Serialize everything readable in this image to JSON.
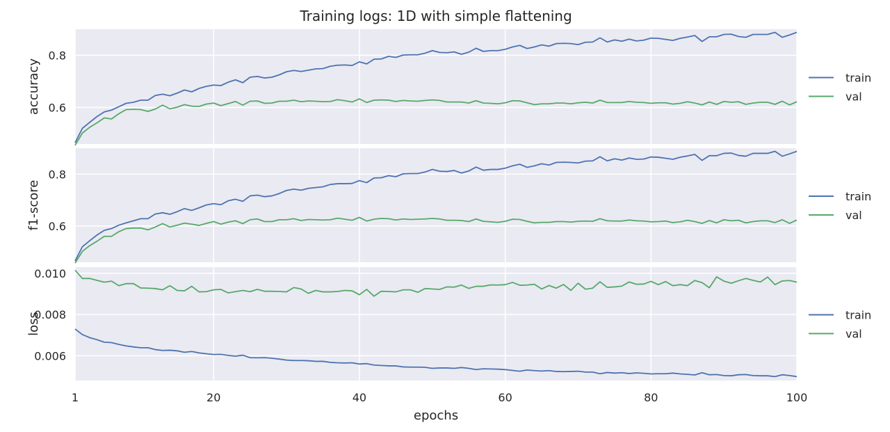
{
  "chart_data": {
    "type": "line",
    "title": "Training logs: 1D with simple flattening",
    "xlabel": "epochs",
    "x_ticks": [
      1,
      20,
      40,
      60,
      80,
      100
    ],
    "x_tick_labels": [
      "1",
      "20",
      "40",
      "60",
      "80",
      "100"
    ],
    "xlim": [
      1,
      100
    ],
    "grid": true,
    "legend_position": "right",
    "colors": {
      "train": "#4c72b0",
      "val": "#55a868",
      "panel_bg": "#eaeaf2",
      "grid": "#ffffff"
    },
    "panels": [
      {
        "ylabel": "accuracy",
        "ylim": [
          0.46,
          0.9
        ],
        "y_ticks": [
          0.6,
          0.8
        ],
        "y_tick_labels": [
          "0.6",
          "0.8"
        ],
        "legend": [
          "train",
          "val"
        ],
        "series": [
          {
            "name": "train",
            "values": [
              0.465,
              0.52,
              0.543,
              0.565,
              0.583,
              0.59,
              0.603,
              0.616,
              0.62,
              0.628,
              0.628,
              0.646,
              0.651,
              0.645,
              0.655,
              0.667,
              0.66,
              0.673,
              0.681,
              0.686,
              0.684,
              0.697,
              0.706,
              0.695,
              0.716,
              0.719,
              0.713,
              0.716,
              0.725,
              0.737,
              0.742,
              0.738,
              0.743,
              0.748,
              0.749,
              0.758,
              0.762,
              0.763,
              0.761,
              0.775,
              0.767,
              0.785,
              0.786,
              0.796,
              0.792,
              0.801,
              0.802,
              0.802,
              0.808,
              0.818,
              0.811,
              0.81,
              0.813,
              0.804,
              0.812,
              0.827,
              0.815,
              0.818,
              0.818,
              0.823,
              0.832,
              0.838,
              0.826,
              0.832,
              0.84,
              0.835,
              0.845,
              0.846,
              0.845,
              0.841,
              0.85,
              0.851,
              0.867,
              0.851,
              0.859,
              0.854,
              0.862,
              0.855,
              0.858,
              0.866,
              0.865,
              0.861,
              0.857,
              0.865,
              0.87,
              0.876,
              0.853,
              0.871,
              0.871,
              0.88,
              0.881,
              0.872,
              0.869,
              0.88,
              0.88,
              0.88,
              0.888,
              0.869,
              0.878,
              0.888
            ]
          },
          {
            "name": "val",
            "values": [
              0.455,
              0.502,
              0.524,
              0.541,
              0.56,
              0.556,
              0.576,
              0.592,
              0.593,
              0.592,
              0.585,
              0.594,
              0.609,
              0.595,
              0.601,
              0.611,
              0.605,
              0.604,
              0.613,
              0.617,
              0.607,
              0.615,
              0.623,
              0.609,
              0.624,
              0.625,
              0.616,
              0.617,
              0.624,
              0.624,
              0.628,
              0.622,
              0.625,
              0.624,
              0.622,
              0.623,
              0.63,
              0.626,
              0.621,
              0.633,
              0.619,
              0.628,
              0.629,
              0.628,
              0.623,
              0.627,
              0.625,
              0.624,
              0.627,
              0.629,
              0.627,
              0.621,
              0.621,
              0.621,
              0.617,
              0.626,
              0.617,
              0.616,
              0.614,
              0.618,
              0.626,
              0.625,
              0.618,
              0.611,
              0.614,
              0.614,
              0.617,
              0.617,
              0.614,
              0.618,
              0.62,
              0.617,
              0.628,
              0.619,
              0.619,
              0.619,
              0.623,
              0.62,
              0.619,
              0.616,
              0.618,
              0.618,
              0.613,
              0.616,
              0.622,
              0.617,
              0.61,
              0.621,
              0.612,
              0.623,
              0.62,
              0.622,
              0.612,
              0.617,
              0.62,
              0.62,
              0.612,
              0.624,
              0.61,
              0.622
            ]
          }
        ]
      },
      {
        "ylabel": "f1-score",
        "ylim": [
          0.46,
          0.9
        ],
        "y_ticks": [
          0.6,
          0.8
        ],
        "y_tick_labels": [
          "0.6",
          "0.8"
        ],
        "legend": [
          "train",
          "val"
        ],
        "series": [
          {
            "name": "train",
            "values": [
              0.465,
              0.52,
              0.543,
              0.565,
              0.583,
              0.59,
              0.603,
              0.612,
              0.62,
              0.628,
              0.628,
              0.646,
              0.651,
              0.645,
              0.655,
              0.667,
              0.66,
              0.67,
              0.681,
              0.686,
              0.682,
              0.697,
              0.703,
              0.695,
              0.716,
              0.719,
              0.713,
              0.716,
              0.725,
              0.737,
              0.742,
              0.738,
              0.745,
              0.748,
              0.751,
              0.76,
              0.763,
              0.763,
              0.764,
              0.775,
              0.767,
              0.785,
              0.786,
              0.794,
              0.79,
              0.801,
              0.802,
              0.802,
              0.808,
              0.818,
              0.811,
              0.81,
              0.814,
              0.804,
              0.812,
              0.827,
              0.815,
              0.818,
              0.818,
              0.823,
              0.832,
              0.838,
              0.826,
              0.832,
              0.84,
              0.835,
              0.845,
              0.846,
              0.845,
              0.843,
              0.85,
              0.851,
              0.867,
              0.851,
              0.859,
              0.854,
              0.862,
              0.857,
              0.858,
              0.866,
              0.865,
              0.861,
              0.857,
              0.865,
              0.87,
              0.876,
              0.853,
              0.871,
              0.871,
              0.88,
              0.881,
              0.872,
              0.869,
              0.88,
              0.88,
              0.88,
              0.888,
              0.869,
              0.878,
              0.888
            ]
          },
          {
            "name": "val",
            "values": [
              0.457,
              0.502,
              0.524,
              0.541,
              0.56,
              0.56,
              0.578,
              0.59,
              0.592,
              0.592,
              0.585,
              0.596,
              0.609,
              0.596,
              0.603,
              0.611,
              0.607,
              0.602,
              0.61,
              0.617,
              0.607,
              0.615,
              0.62,
              0.609,
              0.624,
              0.627,
              0.617,
              0.617,
              0.624,
              0.624,
              0.628,
              0.621,
              0.625,
              0.624,
              0.623,
              0.624,
              0.63,
              0.626,
              0.622,
              0.633,
              0.619,
              0.626,
              0.629,
              0.628,
              0.623,
              0.627,
              0.625,
              0.626,
              0.627,
              0.629,
              0.627,
              0.622,
              0.622,
              0.621,
              0.617,
              0.627,
              0.618,
              0.616,
              0.614,
              0.618,
              0.626,
              0.625,
              0.618,
              0.612,
              0.614,
              0.614,
              0.617,
              0.617,
              0.615,
              0.618,
              0.619,
              0.618,
              0.628,
              0.62,
              0.619,
              0.619,
              0.623,
              0.62,
              0.619,
              0.616,
              0.617,
              0.619,
              0.613,
              0.616,
              0.622,
              0.617,
              0.61,
              0.621,
              0.612,
              0.624,
              0.62,
              0.622,
              0.612,
              0.617,
              0.62,
              0.62,
              0.613,
              0.624,
              0.61,
              0.623
            ]
          }
        ]
      },
      {
        "ylabel": "loss",
        "ylim": [
          0.0048,
          0.0103
        ],
        "y_ticks": [
          0.006,
          0.008,
          0.01
        ],
        "y_tick_labels": [
          "0.006",
          "0.008",
          "0.010"
        ],
        "legend": [
          "train",
          "val"
        ],
        "series": [
          {
            "name": "train",
            "values": [
              0.0073,
              0.00703,
              0.00688,
              0.00678,
              0.00666,
              0.00664,
              0.00655,
              0.00648,
              0.00643,
              0.00639,
              0.00639,
              0.0063,
              0.00626,
              0.00627,
              0.00624,
              0.00617,
              0.00621,
              0.00614,
              0.0061,
              0.00606,
              0.00607,
              0.00602,
              0.00598,
              0.00603,
              0.00591,
              0.0059,
              0.00591,
              0.00588,
              0.00584,
              0.00579,
              0.00577,
              0.00577,
              0.00576,
              0.00573,
              0.00573,
              0.00568,
              0.00566,
              0.00565,
              0.00566,
              0.0056,
              0.00562,
              0.00555,
              0.00553,
              0.00551,
              0.00551,
              0.00546,
              0.00545,
              0.00545,
              0.00544,
              0.00539,
              0.00541,
              0.00541,
              0.00539,
              0.00543,
              0.00539,
              0.00533,
              0.00537,
              0.00536,
              0.00535,
              0.00533,
              0.00529,
              0.00525,
              0.00531,
              0.00528,
              0.00526,
              0.00528,
              0.00524,
              0.00523,
              0.00524,
              0.00525,
              0.00521,
              0.00521,
              0.00513,
              0.00519,
              0.00516,
              0.00518,
              0.00514,
              0.00517,
              0.00515,
              0.00512,
              0.00513,
              0.00513,
              0.00516,
              0.00512,
              0.0051,
              0.00507,
              0.00518,
              0.00508,
              0.00509,
              0.00504,
              0.00503,
              0.00508,
              0.00509,
              0.00504,
              0.00503,
              0.00503,
              0.00499,
              0.00508,
              0.00504,
              0.00499
            ]
          },
          {
            "name": "val",
            "values": [
              0.01015,
              0.00975,
              0.00975,
              0.00966,
              0.00957,
              0.00962,
              0.0094,
              0.0095,
              0.0095,
              0.00929,
              0.00928,
              0.00926,
              0.0092,
              0.0094,
              0.00917,
              0.00915,
              0.00937,
              0.0091,
              0.00911,
              0.0092,
              0.00922,
              0.00905,
              0.00911,
              0.00917,
              0.00911,
              0.00922,
              0.00913,
              0.00913,
              0.00912,
              0.0091,
              0.00931,
              0.00924,
              0.00903,
              0.00917,
              0.0091,
              0.0091,
              0.00912,
              0.00917,
              0.00915,
              0.00896,
              0.00922,
              0.00889,
              0.00913,
              0.00912,
              0.0091,
              0.0092,
              0.0092,
              0.00908,
              0.00926,
              0.00924,
              0.00922,
              0.00934,
              0.00933,
              0.00943,
              0.00927,
              0.00937,
              0.00937,
              0.00944,
              0.00943,
              0.00945,
              0.00956,
              0.00942,
              0.00943,
              0.00947,
              0.00924,
              0.00941,
              0.00928,
              0.00946,
              0.00917,
              0.00952,
              0.00923,
              0.00928,
              0.00959,
              0.00932,
              0.00934,
              0.00938,
              0.00958,
              0.00947,
              0.00948,
              0.00961,
              0.00945,
              0.0096,
              0.0094,
              0.00945,
              0.0094,
              0.00965,
              0.00955,
              0.0093,
              0.00983,
              0.00962,
              0.00952,
              0.00964,
              0.00975,
              0.00966,
              0.00958,
              0.00982,
              0.00945,
              0.00963,
              0.00965,
              0.00957
            ]
          }
        ]
      }
    ]
  }
}
